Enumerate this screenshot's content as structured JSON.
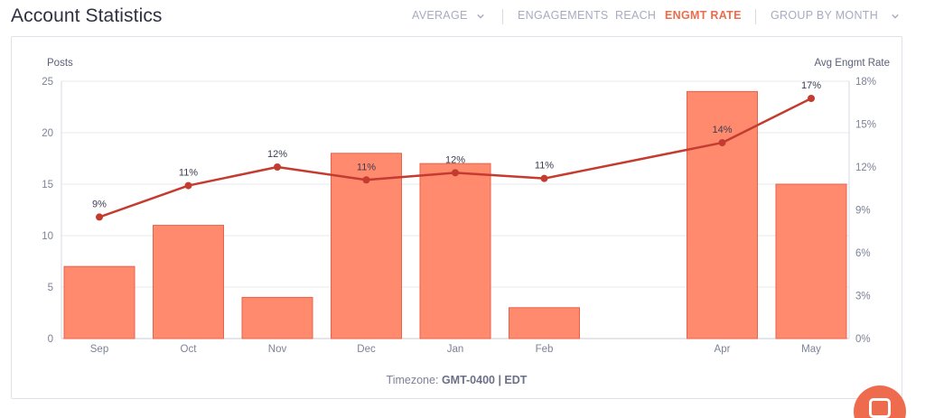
{
  "header": {
    "title": "Account Statistics"
  },
  "toolbar": {
    "average_label": "AVERAGE",
    "engagements_label": "ENGAGEMENTS",
    "reach_label": "REACH",
    "engmt_rate_label": "ENGMT RATE",
    "group_label": "GROUP BY MONTH"
  },
  "colors": {
    "bar_fill": "#ff8a6e",
    "bar_stroke": "#e8614a",
    "line": "#c43b30",
    "active": "#ee6c4d",
    "fab": "#ee6c4d"
  },
  "footer": {
    "timezone_label": "Timezone:",
    "timezone_value": "GMT-0400 | EDT"
  },
  "chart_data": {
    "type": "bar",
    "ylabel_left": "Posts",
    "ylabel_right": "Avg Engmt Rate",
    "categories": [
      "Sep",
      "Oct",
      "Nov",
      "Dec",
      "Jan",
      "Feb",
      "",
      "Apr",
      "May"
    ],
    "ylim_left": [
      0,
      25
    ],
    "ylim_right": [
      0,
      18
    ],
    "yticks_left": [
      "0",
      "5",
      "10",
      "15",
      "20",
      "25"
    ],
    "yticks_right": [
      "0%",
      "3%",
      "6%",
      "9%",
      "12%",
      "15%",
      "18%"
    ],
    "grid": true,
    "series": [
      {
        "type": "bar",
        "values": [
          7,
          11,
          4,
          18,
          17,
          3,
          null,
          24,
          15
        ]
      },
      {
        "type": "line",
        "values": [
          8.5,
          10.7,
          12.0,
          11.1,
          11.6,
          11.2,
          null,
          13.7,
          16.8
        ],
        "labels": [
          "9%",
          "11%",
          "12%",
          "11%",
          "12%",
          "11%",
          "",
          "14%",
          "17%"
        ]
      }
    ]
  }
}
